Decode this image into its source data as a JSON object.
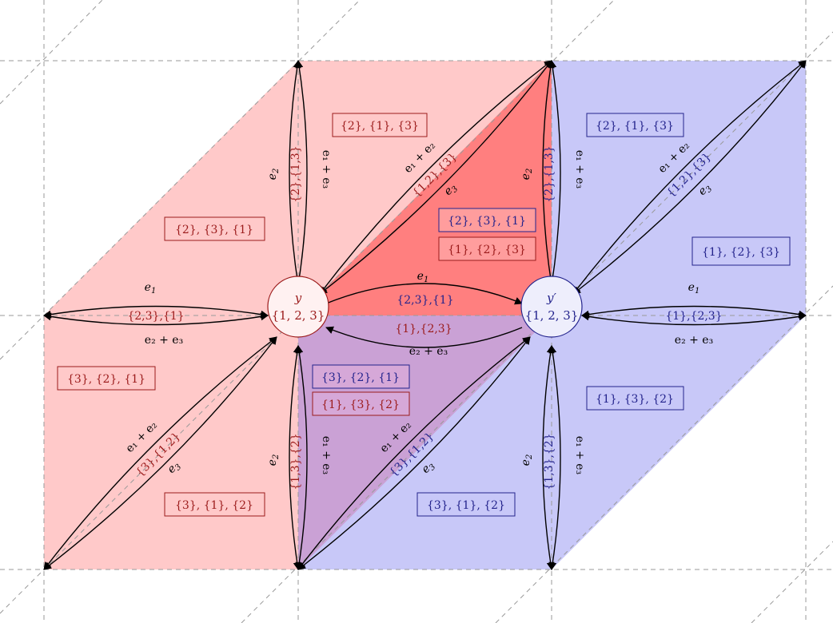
{
  "colors": {
    "red_text": "#9b1b1b",
    "red_fill_light": "#ffc9c9",
    "red_fill_strong": "#ff7f7f",
    "purple_fill": "#caa1d5",
    "blue_text": "#23238c",
    "blue_fill": "#c8c8f8",
    "grid": "#9a9a9a",
    "arrow": "#000000"
  },
  "nodes": {
    "y": {
      "name": "y",
      "set": "{1, 2, 3}"
    },
    "y_prime": {
      "name": "y′",
      "set": "{1, 2, 3}"
    }
  },
  "edge_labels": {
    "e1": "e",
    "e2": "e",
    "e3": "e",
    "e1_sub": "1",
    "e2_sub": "2",
    "e3_sub": "3",
    "e1_plus_e2": "e₁ + e₂",
    "e1_plus_e3": "e₁ + e₃",
    "e2_plus_e3": "e₂ + e₃"
  },
  "red_paths": {
    "left": "{2,3},{1}",
    "upper": "{2},{1,3}",
    "lower_left": "{3},{1,2}",
    "lower": "{1,3},{2}",
    "to_yprime": "{2,3},{1}",
    "from_yprime": "{1},{2,3}",
    "upper_right": "{1,2},{3}"
  },
  "blue_paths": {
    "upper": "{2},{1,3}",
    "upper_right": "{1,2},{3}",
    "right": "{1},{2,3}",
    "lower": "{1,3},{2}",
    "lower_left": "{3},{1,2}"
  },
  "red_regions": {
    "r1": "{2}, {1}, {3}",
    "r2": "{2}, {3}, {1}",
    "r3": "{1}, {2}, {3}",
    "r4": "{3}, {2}, {1}",
    "r5": "{1}, {3}, {2}",
    "r6": "{3}, {1}, {2}"
  },
  "blue_regions": {
    "b1": "{2}, {1}, {3}",
    "b2": "{2}, {3}, {1}",
    "b3": "{1}, {2}, {3}",
    "b4": "{3}, {2}, {1}",
    "b5": "{1}, {3}, {2}",
    "b6": "{3}, {1}, {2}"
  }
}
